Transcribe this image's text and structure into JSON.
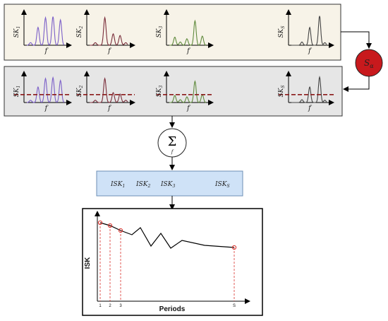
{
  "top_panel": {
    "background": "#f7f3e8",
    "items": [
      {
        "ylabel": "SK",
        "sub": "1",
        "xlabel": "f",
        "color": "#7b5fc8"
      },
      {
        "ylabel": "SK",
        "sub": "2",
        "xlabel": "f",
        "color": "#7a2d3a"
      },
      {
        "ylabel": "SK",
        "sub": "3",
        "xlabel": "f",
        "color": "#5f8a3c"
      },
      {
        "ylabel": "SK",
        "sub": "S",
        "xlabel": "f",
        "color": "#444444"
      }
    ]
  },
  "threshold_node": {
    "symbol": "S",
    "sub": "α",
    "color": "#c8191d"
  },
  "bottom_panel": {
    "background": "#e6e6e6",
    "threshold_color": "#8b1a1a"
  },
  "sum_node": {
    "symbol": "Σ",
    "sub": "f"
  },
  "isk_bar": {
    "background": "#cfe2f7",
    "items": [
      {
        "name": "ISK",
        "sub": "1"
      },
      {
        "name": "ISK",
        "sub": "2"
      },
      {
        "name": "ISK",
        "sub": "3"
      },
      {
        "name": "ISK",
        "sub": "S"
      }
    ]
  },
  "chart": {
    "ylabel": "ISK",
    "xlabel": "Periods",
    "ticks": [
      "1",
      "2",
      "3",
      "S"
    ],
    "marker_color": "#d9302c"
  }
}
